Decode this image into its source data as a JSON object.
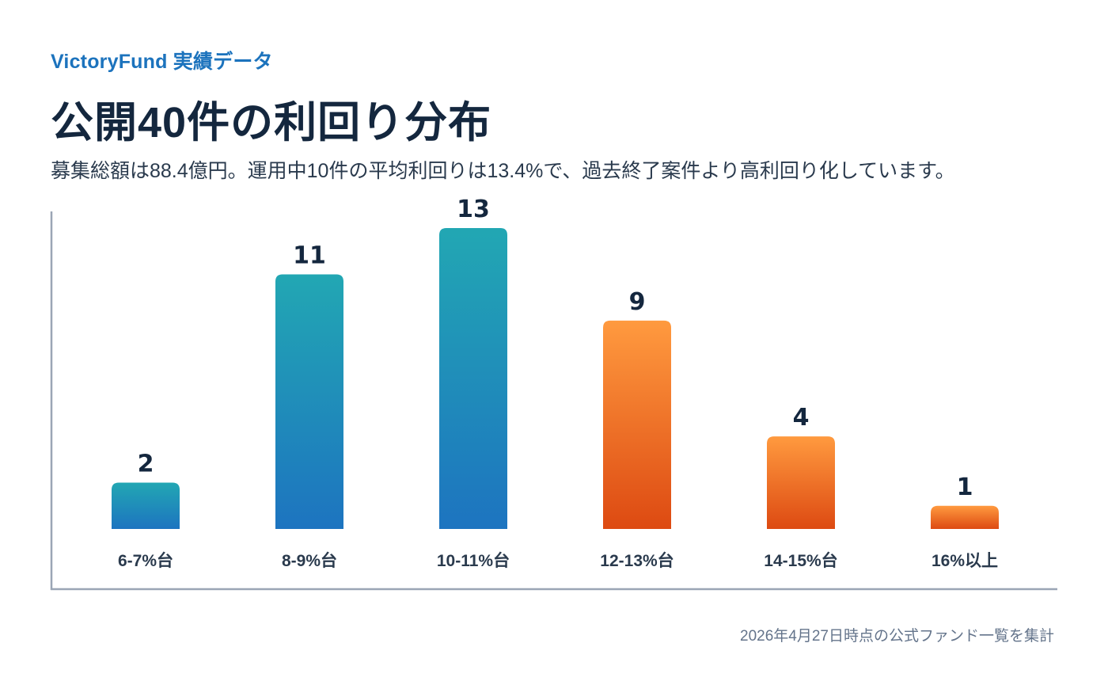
{
  "header": {
    "brand": "VictoryFund 実績データ",
    "title": "公開40件の利回り分布",
    "subtitle": "募集総額は88.4億円。運用中10件の平均利回りは13.4%で、過去終了案件より高利回り化しています。"
  },
  "footnote": "2026年4月27日時点の公式ファンド一覧を集計",
  "colors": {
    "blue_top": "#22a7b3",
    "blue_bottom": "#1d74c0",
    "orange_top": "#ff9a3f",
    "orange_bottom": "#dd4a12",
    "axis": "#9aa5b5",
    "value_label": "#14273e",
    "category_label": "#2a3a4d"
  },
  "chart_data": {
    "type": "bar",
    "categories": [
      "6-7%台",
      "8-9%台",
      "10-11%台",
      "12-13%台",
      "14-15%台",
      "16%以上"
    ],
    "values": [
      2,
      11,
      13,
      9,
      4,
      1
    ],
    "color_groups": [
      "blue",
      "blue",
      "blue",
      "orange",
      "orange",
      "orange"
    ],
    "title": "",
    "xlabel": "",
    "ylabel": "",
    "ylim": [
      0,
      13
    ],
    "grid": false,
    "legend": "none"
  }
}
